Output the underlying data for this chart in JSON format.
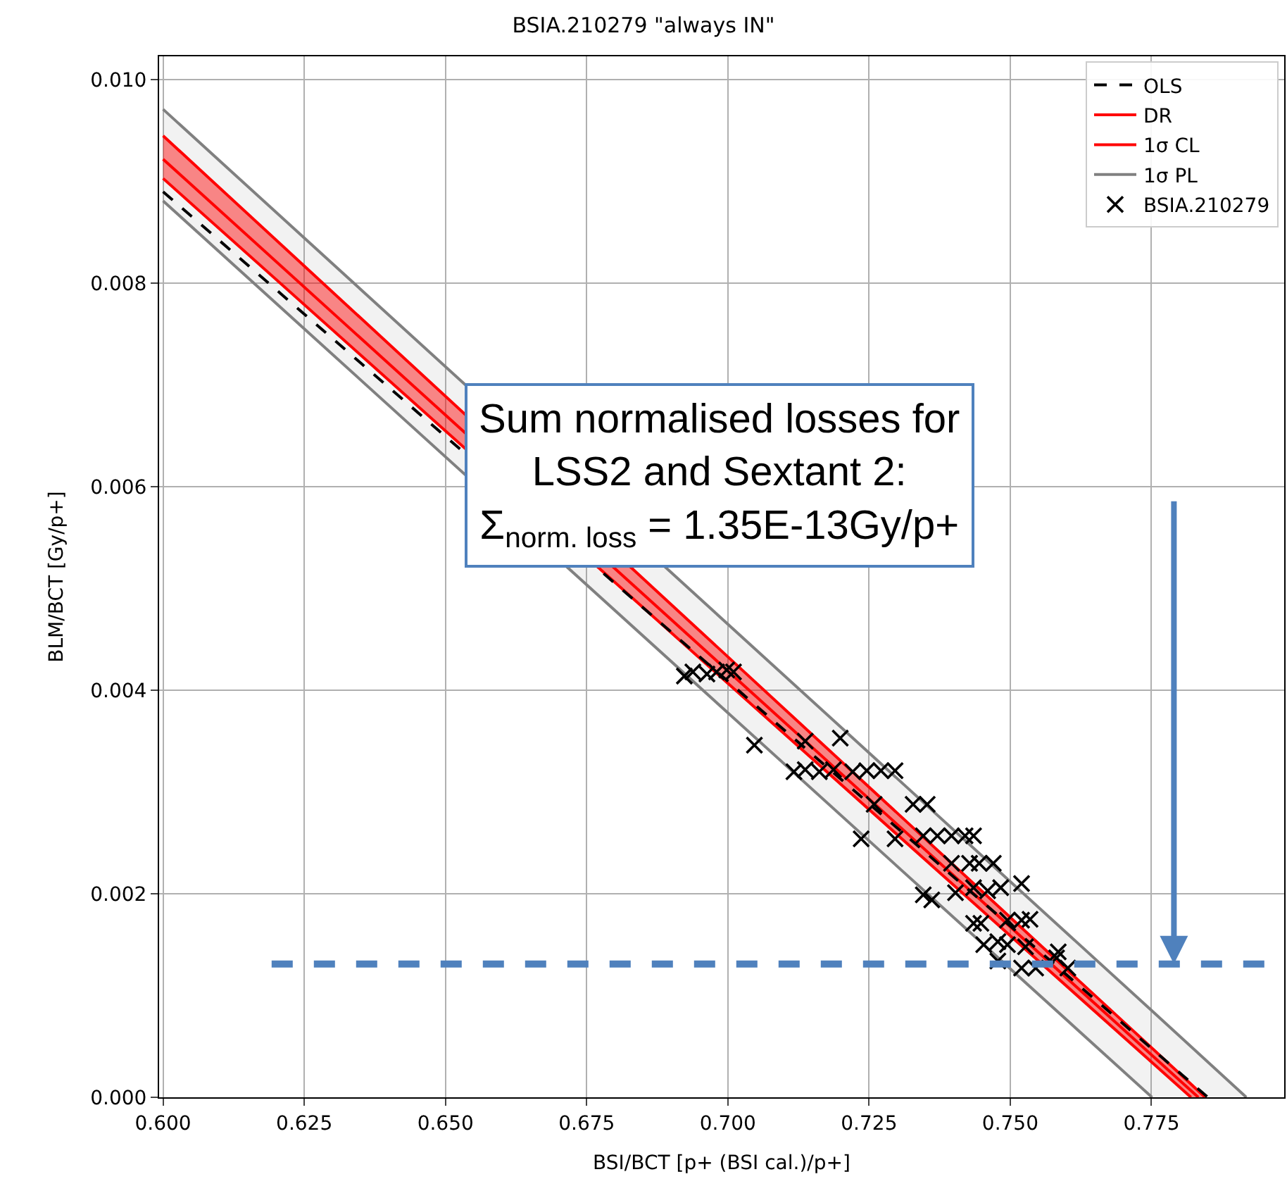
{
  "chart_data": {
    "type": "line",
    "title": "BSIA.210279 \"always IN\"",
    "xlabel": "BSI/BCT [p+ (BSI cal.)/p+]",
    "ylabel": "BLM/BCT [Gy/p+]",
    "xlim": [
      0.5993,
      0.7985
    ],
    "ylim": [
      0,
      0.01023
    ],
    "xticks": [
      {
        "value": 0.6,
        "label": "0.600"
      },
      0.625,
      {
        "value": 0.65,
        "label": "0.650"
      },
      0.675,
      {
        "value": 0.7,
        "label": "0.700"
      },
      0.725,
      {
        "value": 0.75,
        "label": "0.750"
      },
      0.775
    ],
    "yticks": [
      {
        "value": 0,
        "label": "0.000"
      },
      0.002,
      0.004,
      0.006,
      0.008,
      {
        "value": 0.01,
        "label": "0.010"
      }
    ],
    "grid": true,
    "legend": "top right",
    "series": [
      {
        "name": "OLS",
        "line_style": "dashed",
        "color": "#000000",
        "x": [
          0.6,
          0.785
        ],
        "values": [
          0.0089,
          0
        ]
      },
      {
        "name": "DR",
        "color": "#ff0000",
        "x": [
          0.6,
          0.7833
        ],
        "values": [
          0.00922,
          0
        ]
      },
      {
        "name": "1σ CL",
        "color": "#ff0000",
        "x": [
          0.6,
          0.782,
          0.7845
        ],
        "values": [
          0.00945,
          0.00013,
          0
        ],
        "lower": [
          0.00903,
          0,
          0
        ],
        "upper": [
          0.00945,
          0.00013,
          0
        ]
      },
      {
        "color": "#ff0000",
        "x": [
          0.6,
          0.782
        ],
        "values": [
          0.00903,
          0
        ]
      },
      {
        "name": "1σ PL",
        "color": "#808080",
        "x": [
          0.6,
          0.7751,
          0.7918
        ],
        "values": [
          0.00971,
          0.00085,
          0
        ],
        "lower": [
          0.00881,
          0,
          0
        ],
        "upper": [
          0.00971,
          0.00085,
          0
        ]
      },
      {
        "color": "#808080",
        "x": [
          0.6,
          0.7751
        ],
        "values": [
          0.00881,
          0
        ]
      },
      {
        "name": "BSIA.210279",
        "type": "scatter",
        "marker": "cross",
        "color": "#000000",
        "x": [
          0.6923,
          0.6938,
          0.6963,
          0.698,
          0.6998,
          0.701,
          0.7047,
          0.7137,
          0.7199,
          0.7117,
          0.7137,
          0.7162,
          0.7187,
          0.7221,
          0.7246,
          0.7271,
          0.7296,
          0.7259,
          0.7328,
          0.7353,
          0.7236,
          0.7296,
          0.7346,
          0.7371,
          0.7396,
          0.742,
          0.7435,
          0.7396,
          0.7428,
          0.7445,
          0.747,
          0.752,
          0.7346,
          0.7361,
          0.7403,
          0.7435,
          0.746,
          0.7483,
          0.7435,
          0.7448,
          0.7495,
          0.752,
          0.7535,
          0.7453,
          0.7478,
          0.7495,
          0.7527,
          0.7585,
          0.7478,
          0.752,
          0.7545,
          0.7582,
          0.7602
        ],
        "values": [
          0.00414,
          0.00418,
          0.00416,
          0.00418,
          0.0042,
          0.00418,
          0.00346,
          0.0035,
          0.00353,
          0.0032,
          0.00322,
          0.0032,
          0.00322,
          0.0032,
          0.00321,
          0.00321,
          0.00321,
          0.00288,
          0.00288,
          0.00288,
          0.00254,
          0.00254,
          0.00257,
          0.00257,
          0.00257,
          0.00257,
          0.00257,
          0.0023,
          0.0023,
          0.0023,
          0.0023,
          0.0021,
          0.00199,
          0.00194,
          0.00201,
          0.00206,
          0.00203,
          0.00206,
          0.00171,
          0.00171,
          0.00174,
          0.00174,
          0.00175,
          0.0015,
          0.00153,
          0.0015,
          0.00148,
          0.00143,
          0.00134,
          0.00127,
          0.00127,
          0.00137,
          0.00127
        ]
      }
    ],
    "ref_lines": [
      {
        "axis": "y",
        "value": 0.00131,
        "color": "#4f81bd",
        "line_style": "dashed"
      }
    ],
    "annotations": [
      "Sum normalised losses for\nLSS2 and Sextant 2:\nΣ$_{norm. loss}$ = 1.35E-13Gy/p+"
    ]
  }
}
